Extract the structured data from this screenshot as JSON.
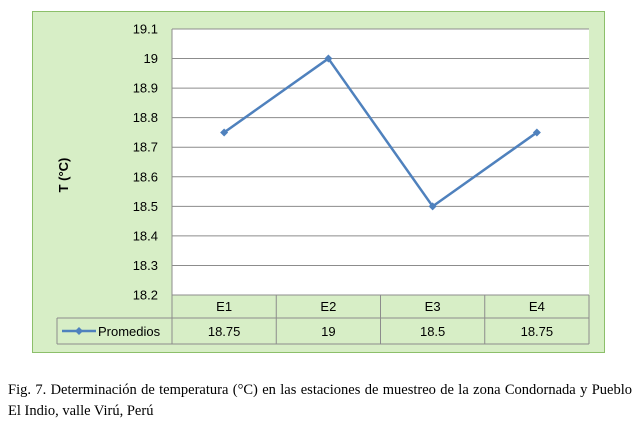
{
  "chart_data": {
    "type": "line",
    "categories": [
      "E1",
      "E2",
      "E3",
      "E4"
    ],
    "series": [
      {
        "name": "Promedios",
        "values": [
          18.75,
          19,
          18.5,
          18.75
        ],
        "color": "#4f81bd"
      }
    ],
    "table_values": [
      "18.75",
      "19",
      "18.5",
      "18.75"
    ],
    "ylabel": "T (°C)",
    "ylim": [
      18.2,
      19.1
    ],
    "yticks": [
      "19.1",
      "19",
      "18.9",
      "18.8",
      "18.7",
      "18.6",
      "18.5",
      "18.4",
      "18.3",
      "18.2"
    ],
    "grid": true,
    "legend": "data-table",
    "plot_background": "#ffffff",
    "chart_background": "#d7eec6"
  },
  "caption": "Fig. 7. Determinación de temperatura (°C) en las estaciones de muestreo de la zona Condornada y Pueblo El Indio, valle Virú, Perú"
}
